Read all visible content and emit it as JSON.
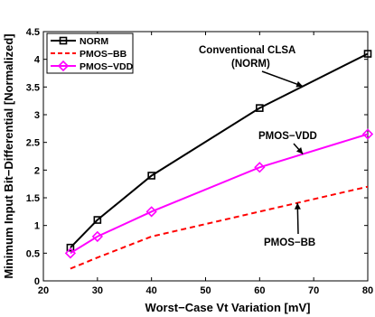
{
  "chart_data": {
    "type": "line",
    "xlabel": "Worst−Case Vt Variation [mV]",
    "ylabel": "Minimum Input Bit−Differential [Normalized]",
    "xlim": [
      20,
      80
    ],
    "ylim": [
      0,
      4.5
    ],
    "xticks": [
      "20",
      "30",
      "40",
      "50",
      "60",
      "70",
      "80"
    ],
    "yticks": [
      "0",
      "0.5",
      "1",
      "1.5",
      "2",
      "2.5",
      "3",
      "3.5",
      "4",
      "4.5"
    ],
    "grid": false,
    "legend_position": "top-left",
    "series": [
      {
        "name": "NORM",
        "color": "#000000",
        "dash": "solid",
        "marker": "square",
        "x": [
          25,
          30,
          40,
          60,
          80
        ],
        "y": [
          0.6,
          1.1,
          1.9,
          3.12,
          4.1
        ]
      },
      {
        "name": "PMOS−BB",
        "color": "#ff0000",
        "dash": "dashed",
        "marker": "none",
        "x": [
          25,
          30,
          40,
          60,
          80
        ],
        "y": [
          0.22,
          0.42,
          0.8,
          1.25,
          1.7
        ]
      },
      {
        "name": "PMOS−VDD",
        "color": "#ff00ff",
        "dash": "solid",
        "marker": "diamond",
        "x": [
          25,
          30,
          40,
          60,
          80
        ],
        "y": [
          0.5,
          0.8,
          1.25,
          2.05,
          2.65
        ]
      }
    ],
    "annotations": [
      {
        "lines": [
          "Conventional CLSA",
          "(NORM)"
        ]
      },
      {
        "lines": [
          "PMOS−VDD"
        ]
      },
      {
        "lines": [
          "PMOS−BB"
        ]
      }
    ]
  }
}
